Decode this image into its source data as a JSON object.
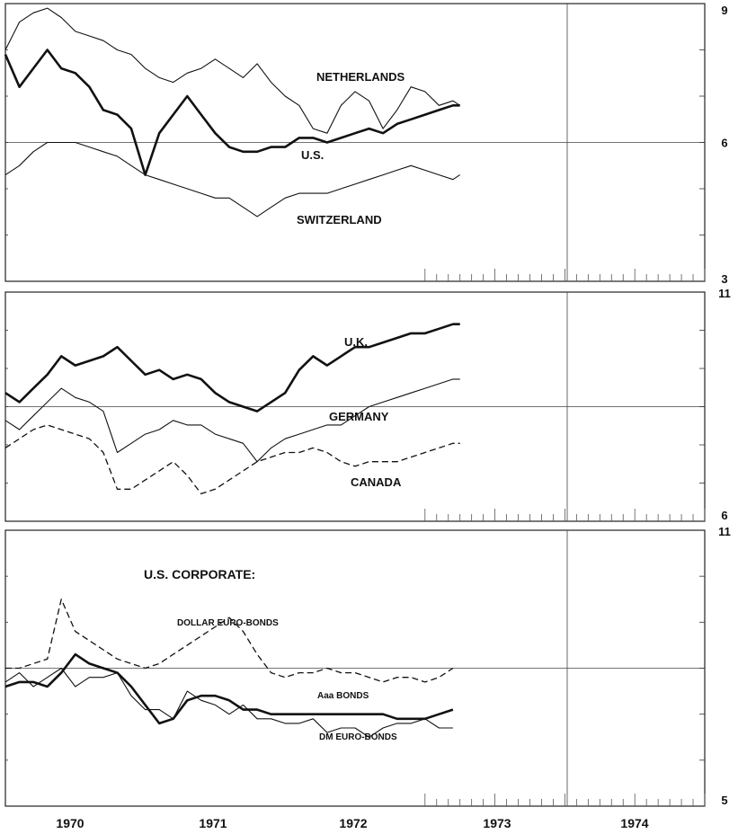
{
  "chart_data": [
    {
      "type": "line",
      "panel": 1,
      "ylim": [
        3,
        9
      ],
      "y_ticks": [
        "9",
        "6",
        "3"
      ],
      "x_labels": [
        "1970",
        "1971",
        "1972",
        "1973",
        "1974"
      ],
      "xlim": [
        1969.6,
        1974.6
      ],
      "grid": true,
      "series": [
        {
          "name": "NETHERLANDS",
          "style": "thin",
          "x": [
            1969.6,
            1969.7,
            1969.8,
            1969.9,
            1970.0,
            1970.1,
            1970.2,
            1970.3,
            1970.4,
            1970.5,
            1970.6,
            1970.7,
            1970.8,
            1970.9,
            1971.0,
            1971.1,
            1971.2,
            1971.3,
            1971.4,
            1971.5,
            1971.6,
            1971.7,
            1971.8,
            1971.9,
            1972.0,
            1972.1,
            1972.2,
            1972.3,
            1972.4,
            1972.5,
            1972.6,
            1972.7,
            1972.8,
            1972.85
          ],
          "y": [
            8.0,
            8.6,
            8.8,
            8.9,
            8.7,
            8.4,
            8.3,
            8.2,
            8.0,
            7.9,
            7.6,
            7.4,
            7.3,
            7.5,
            7.6,
            7.8,
            7.6,
            7.4,
            7.7,
            7.3,
            7.0,
            6.8,
            6.3,
            6.2,
            6.8,
            7.1,
            6.9,
            6.3,
            6.7,
            7.2,
            7.1,
            6.8,
            6.9,
            6.8
          ]
        },
        {
          "name": "U.S.",
          "style": "bold",
          "x": [
            1969.6,
            1969.7,
            1969.8,
            1969.9,
            1970.0,
            1970.1,
            1970.2,
            1970.3,
            1970.4,
            1970.5,
            1970.6,
            1970.7,
            1970.8,
            1970.9,
            1971.0,
            1971.1,
            1971.2,
            1971.3,
            1971.4,
            1971.5,
            1971.6,
            1971.7,
            1971.8,
            1971.9,
            1972.0,
            1972.1,
            1972.2,
            1972.3,
            1972.4,
            1972.5,
            1972.6,
            1972.7,
            1972.8,
            1972.85
          ],
          "y": [
            7.9,
            7.2,
            7.6,
            8.0,
            7.6,
            7.5,
            7.2,
            6.7,
            6.6,
            6.3,
            5.3,
            6.2,
            6.6,
            7.0,
            6.6,
            6.2,
            5.9,
            5.8,
            5.8,
            5.9,
            5.9,
            6.1,
            6.1,
            6.0,
            6.1,
            6.2,
            6.3,
            6.2,
            6.4,
            6.5,
            6.6,
            6.7,
            6.8,
            6.8
          ]
        },
        {
          "name": "SWITZERLAND",
          "style": "thin",
          "x": [
            1969.6,
            1969.7,
            1969.8,
            1969.9,
            1970.0,
            1970.1,
            1970.2,
            1970.3,
            1970.4,
            1970.5,
            1970.6,
            1970.7,
            1970.8,
            1970.9,
            1971.0,
            1971.1,
            1971.2,
            1971.3,
            1971.4,
            1971.5,
            1971.6,
            1971.7,
            1971.8,
            1971.9,
            1972.0,
            1972.1,
            1972.2,
            1972.3,
            1972.4,
            1972.5,
            1972.6,
            1972.7,
            1972.8,
            1972.85
          ],
          "y": [
            5.3,
            5.5,
            5.8,
            6.0,
            6.0,
            6.0,
            5.9,
            5.8,
            5.7,
            5.5,
            5.3,
            5.2,
            5.1,
            5.0,
            4.9,
            4.8,
            4.8,
            4.6,
            4.4,
            4.6,
            4.8,
            4.9,
            4.9,
            4.9,
            5.0,
            5.1,
            5.2,
            5.3,
            5.4,
            5.5,
            5.4,
            5.3,
            5.2,
            5.3
          ]
        }
      ]
    },
    {
      "type": "line",
      "panel": 2,
      "ylim": [
        6,
        11
      ],
      "y_ticks": [
        "11",
        "6"
      ],
      "x_labels": [
        "1970",
        "1971",
        "1972",
        "1973",
        "1974"
      ],
      "xlim": [
        1969.6,
        1974.6
      ],
      "grid": true,
      "series": [
        {
          "name": "U.K.",
          "style": "bold",
          "x": [
            1969.6,
            1969.7,
            1969.8,
            1969.9,
            1970.0,
            1970.1,
            1970.2,
            1970.3,
            1970.4,
            1970.5,
            1970.6,
            1970.7,
            1970.8,
            1970.9,
            1971.0,
            1971.1,
            1971.2,
            1971.3,
            1971.4,
            1971.5,
            1971.6,
            1971.7,
            1971.8,
            1971.9,
            1972.0,
            1972.1,
            1972.2,
            1972.3,
            1972.4,
            1972.5,
            1972.6,
            1972.7,
            1972.8,
            1972.85
          ],
          "y": [
            8.8,
            8.6,
            8.9,
            9.2,
            9.6,
            9.4,
            9.5,
            9.6,
            9.8,
            9.5,
            9.2,
            9.3,
            9.1,
            9.2,
            9.1,
            8.8,
            8.6,
            8.5,
            8.4,
            8.6,
            8.8,
            9.3,
            9.6,
            9.4,
            9.6,
            9.8,
            9.8,
            9.9,
            10.0,
            10.1,
            10.1,
            10.2,
            10.3,
            10.3
          ]
        },
        {
          "name": "GERMANY",
          "style": "thin",
          "x": [
            1969.6,
            1969.7,
            1969.8,
            1969.9,
            1970.0,
            1970.1,
            1970.2,
            1970.3,
            1970.4,
            1970.5,
            1970.6,
            1970.7,
            1970.8,
            1970.9,
            1971.0,
            1971.1,
            1971.2,
            1971.3,
            1971.4,
            1971.5,
            1971.6,
            1971.7,
            1971.8,
            1971.9,
            1972.0,
            1972.1,
            1972.2,
            1972.3,
            1972.4,
            1972.5,
            1972.6,
            1972.7,
            1972.8,
            1972.85
          ],
          "y": [
            8.2,
            8.0,
            8.3,
            8.6,
            8.9,
            8.7,
            8.6,
            8.4,
            7.5,
            7.7,
            7.9,
            8.0,
            8.2,
            8.1,
            8.1,
            7.9,
            7.8,
            7.7,
            7.3,
            7.6,
            7.8,
            7.9,
            8.0,
            8.1,
            8.1,
            8.3,
            8.5,
            8.6,
            8.7,
            8.8,
            8.9,
            9.0,
            9.1,
            9.1
          ]
        },
        {
          "name": "CANADA",
          "style": "dashed",
          "x": [
            1969.6,
            1969.7,
            1969.8,
            1969.9,
            1970.0,
            1970.1,
            1970.2,
            1970.3,
            1970.4,
            1970.5,
            1970.6,
            1970.7,
            1970.8,
            1970.9,
            1971.0,
            1971.1,
            1971.2,
            1971.3,
            1971.4,
            1971.5,
            1971.6,
            1971.7,
            1971.8,
            1971.9,
            1972.0,
            1972.1,
            1972.2,
            1972.3,
            1972.4,
            1972.5,
            1972.6,
            1972.7,
            1972.8,
            1972.85
          ],
          "y": [
            7.6,
            7.8,
            8.0,
            8.1,
            8.0,
            7.9,
            7.8,
            7.5,
            6.7,
            6.7,
            6.9,
            7.1,
            7.3,
            7.0,
            6.6,
            6.7,
            6.9,
            7.1,
            7.3,
            7.4,
            7.5,
            7.5,
            7.6,
            7.5,
            7.3,
            7.2,
            7.3,
            7.3,
            7.3,
            7.4,
            7.5,
            7.6,
            7.7,
            7.7
          ]
        }
      ]
    },
    {
      "type": "line",
      "panel": 3,
      "title": "U.S. CORPORATE:",
      "ylim": [
        5,
        11
      ],
      "y_ticks": [
        "11",
        "5"
      ],
      "x_labels": [
        "1970",
        "1971",
        "1972",
        "1973",
        "1974"
      ],
      "xlim": [
        1969.6,
        1974.6
      ],
      "grid": true,
      "series": [
        {
          "name": "DOLLAR EURO-BONDS",
          "style": "dashed",
          "x": [
            1969.6,
            1969.7,
            1969.8,
            1969.9,
            1970.0,
            1970.1,
            1970.2,
            1970.3,
            1970.4,
            1970.5,
            1970.6,
            1970.7,
            1970.8,
            1970.9,
            1971.0,
            1971.1,
            1971.2,
            1971.3,
            1971.4,
            1971.5,
            1971.6,
            1971.7,
            1971.8,
            1971.9,
            1972.0,
            1972.1,
            1972.2,
            1972.3,
            1972.4,
            1972.5,
            1972.6,
            1972.7,
            1972.8
          ],
          "y": [
            8.0,
            8.0,
            8.1,
            8.2,
            9.5,
            8.8,
            8.6,
            8.4,
            8.2,
            8.1,
            8.0,
            8.1,
            8.3,
            8.5,
            8.7,
            8.9,
            9.1,
            8.8,
            8.3,
            7.9,
            7.8,
            7.9,
            7.9,
            8.0,
            7.9,
            7.9,
            7.8,
            7.7,
            7.8,
            7.8,
            7.7,
            7.8,
            8.0
          ]
        },
        {
          "name": "Aaa BONDS",
          "style": "bold",
          "x": [
            1969.6,
            1969.7,
            1969.8,
            1969.9,
            1970.0,
            1970.1,
            1970.2,
            1970.3,
            1970.4,
            1970.5,
            1970.6,
            1970.7,
            1970.8,
            1970.9,
            1971.0,
            1971.1,
            1971.2,
            1971.3,
            1971.4,
            1971.5,
            1971.6,
            1971.7,
            1971.8,
            1971.9,
            1972.0,
            1972.1,
            1972.2,
            1972.3,
            1972.4,
            1972.5,
            1972.6,
            1972.7,
            1972.8
          ],
          "y": [
            7.6,
            7.7,
            7.7,
            7.6,
            7.9,
            8.3,
            8.1,
            8.0,
            7.9,
            7.6,
            7.2,
            6.8,
            6.9,
            7.3,
            7.4,
            7.4,
            7.3,
            7.1,
            7.1,
            7.0,
            7.0,
            7.0,
            7.0,
            7.0,
            7.0,
            7.0,
            7.0,
            7.0,
            6.9,
            6.9,
            6.9,
            7.0,
            7.1
          ]
        },
        {
          "name": "DM EURO-BONDS",
          "style": "thin",
          "x": [
            1969.6,
            1969.7,
            1969.8,
            1969.9,
            1970.0,
            1970.1,
            1970.2,
            1970.3,
            1970.4,
            1970.5,
            1970.6,
            1970.7,
            1970.8,
            1970.9,
            1971.0,
            1971.1,
            1971.2,
            1971.3,
            1971.4,
            1971.5,
            1971.6,
            1971.7,
            1971.8,
            1971.9,
            1972.0,
            1972.1,
            1972.2,
            1972.3,
            1972.4,
            1972.5,
            1972.6,
            1972.7,
            1972.8
          ],
          "y": [
            7.7,
            7.9,
            7.6,
            7.8,
            8.0,
            7.6,
            7.8,
            7.8,
            7.9,
            7.4,
            7.1,
            7.1,
            6.9,
            7.5,
            7.3,
            7.2,
            7.0,
            7.2,
            6.9,
            6.9,
            6.8,
            6.8,
            6.9,
            6.6,
            6.7,
            6.7,
            6.5,
            6.7,
            6.8,
            6.8,
            6.9,
            6.7,
            6.7
          ]
        }
      ]
    }
  ]
}
